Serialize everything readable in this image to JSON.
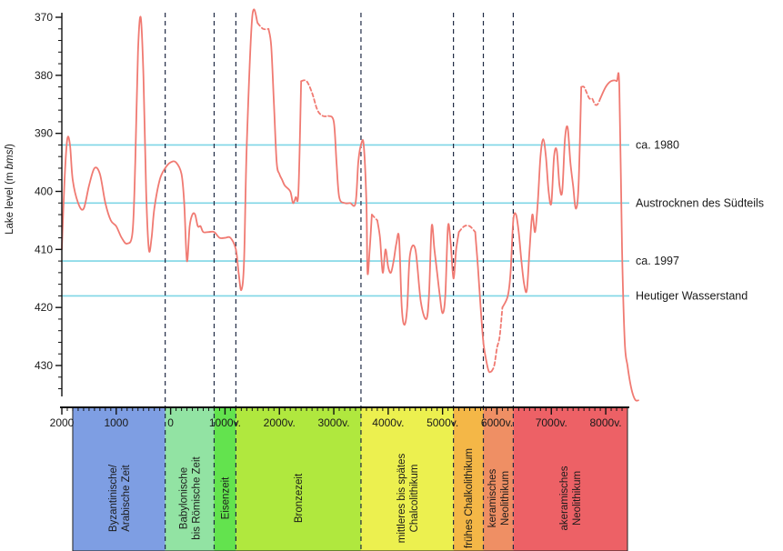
{
  "chart_data": {
    "type": "line",
    "ylabel_main": "Lake level (m ",
    "ylabel_unit": "bmsl",
    "ylabel_close": ")",
    "ylim": [
      437,
      369
    ],
    "yticks": [
      370,
      380,
      390,
      400,
      410,
      420,
      430
    ],
    "y_tick_labels": [
      "370",
      "380",
      "390",
      "400",
      "410",
      "420",
      "430"
    ],
    "x_ticks": [
      {
        "year": -2000,
        "label": "2000"
      },
      {
        "year": -1000,
        "label": "1000"
      },
      {
        "year": 0,
        "label": "0"
      },
      {
        "year": 1000,
        "label": "1000v."
      },
      {
        "year": 2000,
        "label": "2000v."
      },
      {
        "year": 3000,
        "label": "3000v."
      },
      {
        "year": 4000,
        "label": "4000v."
      },
      {
        "year": 5000,
        "label": "5000v."
      },
      {
        "year": 6000,
        "label": "6000v."
      },
      {
        "year": 7000,
        "label": "7000v."
      },
      {
        "year": 8000,
        "label": "8000v."
      }
    ],
    "period_boundaries": [
      -100,
      800,
      1200,
      3500,
      5200,
      5750,
      6300
    ],
    "reference_lines": [
      {
        "level": 392,
        "label": "ca. 1980"
      },
      {
        "level": 402,
        "label": "Austrocknen des Südteils"
      },
      {
        "level": 412,
        "label": "ca. 1997"
      },
      {
        "level": 418,
        "label": "Heutiger Wasserstand"
      }
    ],
    "periods": [
      {
        "start": -1800,
        "end": -100,
        "color": "#7e9ee3",
        "lines": [
          "Byzantinische/",
          "Arabische Zeit"
        ]
      },
      {
        "start": -100,
        "end": 800,
        "color": "#92e3a3",
        "lines": [
          "Babylonische",
          "bis Römische Zeit"
        ]
      },
      {
        "start": 800,
        "end": 1200,
        "color": "#63e34e",
        "lines": [
          "Eisenzeit"
        ]
      },
      {
        "start": 1200,
        "end": 3500,
        "color": "#b0e83e",
        "lines": [
          "Bronzezeit"
        ]
      },
      {
        "start": 3500,
        "end": 5200,
        "color": "#ecf04f",
        "lines": [
          "mittleres bis spätes",
          "Chalcolithikum"
        ]
      },
      {
        "start": 5200,
        "end": 5750,
        "color": "#f4b747",
        "lines": [
          "frühes Chalkolithikum"
        ]
      },
      {
        "start": 5750,
        "end": 6300,
        "color": "#ef8f64",
        "lines": [
          "keramisches",
          "Neolithikum"
        ]
      },
      {
        "start": 6300,
        "end": 8400,
        "color": "#ed6166",
        "lines": [
          "akeramisches",
          "Neolithikum"
        ]
      }
    ],
    "line_color": "#f07a72",
    "reference_color": "#7fd6e6",
    "series": [
      {
        "segments": [
          {
            "style": "solid",
            "points": [
              [
                -2000,
                410
              ],
              [
                -1950,
                398
              ],
              [
                -1900,
                391
              ],
              [
                -1850,
                392
              ],
              [
                -1800,
                398
              ],
              [
                -1700,
                402
              ],
              [
                -1600,
                403
              ],
              [
                -1500,
                399
              ],
              [
                -1400,
                396
              ],
              [
                -1300,
                397
              ],
              [
                -1200,
                402
              ],
              [
                -1100,
                405
              ],
              [
                -1000,
                406
              ],
              [
                -900,
                408
              ],
              [
                -800,
                409
              ],
              [
                -700,
                407
              ],
              [
                -650,
                395
              ],
              [
                -600,
                376
              ],
              [
                -550,
                370
              ],
              [
                -500,
                380
              ],
              [
                -450,
                400
              ],
              [
                -400,
                410
              ],
              [
                -350,
                408
              ],
              [
                -300,
                403
              ],
              [
                -200,
                398
              ],
              [
                -100,
                396
              ],
              [
                0,
                395
              ],
              [
                100,
                395
              ],
              [
                200,
                397
              ],
              [
                250,
                402
              ],
              [
                300,
                412
              ],
              [
                350,
                406
              ],
              [
                400,
                404
              ],
              [
                450,
                404
              ],
              [
                500,
                406
              ],
              [
                550,
                406
              ],
              [
                600,
                407
              ],
              [
                700,
                407
              ],
              [
                800,
                407
              ],
              [
                900,
                408
              ],
              [
                1000,
                408
              ],
              [
                1100,
                408
              ],
              [
                1200,
                410
              ],
              [
                1250,
                414
              ],
              [
                1300,
                417
              ],
              [
                1350,
                412
              ],
              [
                1400,
                392
              ],
              [
                1500,
                370
              ],
              [
                1600,
                371
              ]
            ]
          },
          {
            "style": "dashed",
            "points": [
              [
                1600,
                371
              ],
              [
                1700,
                372
              ],
              [
                1800,
                372
              ]
            ]
          },
          {
            "style": "solid",
            "points": [
              [
                1800,
                372
              ],
              [
                1850,
                375
              ],
              [
                1900,
                385
              ],
              [
                1950,
                395
              ],
              [
                2000,
                397
              ],
              [
                2050,
                398
              ],
              [
                2100,
                399
              ],
              [
                2200,
                400
              ],
              [
                2250,
                402
              ],
              [
                2300,
                401
              ],
              [
                2350,
                400
              ],
              [
                2400,
                381
              ]
            ]
          },
          {
            "style": "dashed",
            "points": [
              [
                2400,
                381
              ],
              [
                2500,
                381
              ],
              [
                2600,
                383
              ],
              [
                2700,
                386
              ],
              [
                2800,
                387
              ],
              [
                2900,
                387
              ]
            ]
          },
          {
            "style": "solid",
            "points": [
              [
                2900,
                387
              ],
              [
                3000,
                388
              ],
              [
                3050,
                395
              ],
              [
                3100,
                401
              ],
              [
                3200,
                402
              ],
              [
                3300,
                402
              ],
              [
                3400,
                402
              ],
              [
                3450,
                395
              ],
              [
                3500,
                392
              ],
              [
                3550,
                392
              ],
              [
                3600,
                402
              ],
              [
                3620,
                414
              ],
              [
                3660,
                410
              ],
              [
                3700,
                404
              ]
            ]
          },
          {
            "style": "dashed",
            "points": [
              [
                3700,
                404
              ],
              [
                3800,
                405
              ]
            ]
          },
          {
            "style": "solid",
            "points": [
              [
                3800,
                405
              ],
              [
                3850,
                408
              ],
              [
                3900,
                414
              ],
              [
                3950,
                410
              ],
              [
                4000,
                413
              ],
              [
                4050,
                414
              ],
              [
                4100,
                412
              ],
              [
                4150,
                409
              ],
              [
                4200,
                408
              ],
              [
                4250,
                420
              ],
              [
                4300,
                423
              ],
              [
                4350,
                420
              ],
              [
                4400,
                411
              ],
              [
                4500,
                410
              ],
              [
                4600,
                419
              ],
              [
                4700,
                422
              ],
              [
                4750,
                418
              ],
              [
                4800,
                406
              ],
              [
                4850,
                410
              ],
              [
                4900,
                414
              ],
              [
                4950,
                418
              ],
              [
                5000,
                421
              ],
              [
                5050,
                418
              ],
              [
                5100,
                406
              ],
              [
                5150,
                409
              ],
              [
                5200,
                415
              ],
              [
                5250,
                410
              ],
              [
                5300,
                407
              ]
            ]
          },
          {
            "style": "dashed",
            "points": [
              [
                5300,
                407
              ],
              [
                5400,
                406
              ],
              [
                5500,
                406
              ],
              [
                5600,
                407
              ]
            ]
          },
          {
            "style": "solid",
            "points": [
              [
                5600,
                407
              ],
              [
                5650,
                413
              ],
              [
                5700,
                420
              ],
              [
                5750,
                426
              ],
              [
                5800,
                429
              ],
              [
                5850,
                431
              ],
              [
                5900,
                431
              ]
            ]
          },
          {
            "style": "dashed",
            "points": [
              [
                5900,
                431
              ],
              [
                5950,
                430
              ],
              [
                6000,
                427
              ],
              [
                6050,
                425
              ],
              [
                6100,
                420
              ]
            ]
          },
          {
            "style": "solid",
            "points": [
              [
                6100,
                420
              ],
              [
                6200,
                418
              ],
              [
                6250,
                414
              ],
              [
                6300,
                405
              ],
              [
                6350,
                404
              ],
              [
                6400,
                407
              ],
              [
                6450,
                412
              ],
              [
                6500,
                416
              ],
              [
                6550,
                417
              ],
              [
                6600,
                410
              ],
              [
                6650,
                404
              ],
              [
                6700,
                407
              ],
              [
                6750,
                402
              ],
              [
                6800,
                394
              ],
              [
                6850,
                391
              ],
              [
                6900,
                394
              ],
              [
                6950,
                400
              ],
              [
                7000,
                402
              ],
              [
                7050,
                394
              ],
              [
                7100,
                393
              ],
              [
                7150,
                399
              ],
              [
                7200,
                400
              ],
              [
                7250,
                391
              ],
              [
                7300,
                389
              ],
              [
                7350,
                395
              ],
              [
                7400,
                399
              ],
              [
                7450,
                403
              ],
              [
                7500,
                399
              ],
              [
                7550,
                382
              ]
            ]
          },
          {
            "style": "dashed",
            "points": [
              [
                7550,
                382
              ],
              [
                7600,
                382
              ],
              [
                7650,
                383
              ],
              [
                7700,
                384
              ],
              [
                7750,
                384
              ],
              [
                7800,
                385
              ],
              [
                7850,
                385
              ],
              [
                7900,
                384
              ]
            ]
          },
          {
            "style": "solid",
            "points": [
              [
                7900,
                384
              ],
              [
                8000,
                382
              ],
              [
                8100,
                381
              ],
              [
                8200,
                381
              ],
              [
                8250,
                382
              ],
              [
                8300,
                410
              ],
              [
                8350,
                426
              ],
              [
                8400,
                430
              ],
              [
                8450,
                433
              ],
              [
                8500,
                435
              ],
              [
                8550,
                436
              ],
              [
                8600,
                436
              ]
            ]
          }
        ]
      }
    ]
  }
}
